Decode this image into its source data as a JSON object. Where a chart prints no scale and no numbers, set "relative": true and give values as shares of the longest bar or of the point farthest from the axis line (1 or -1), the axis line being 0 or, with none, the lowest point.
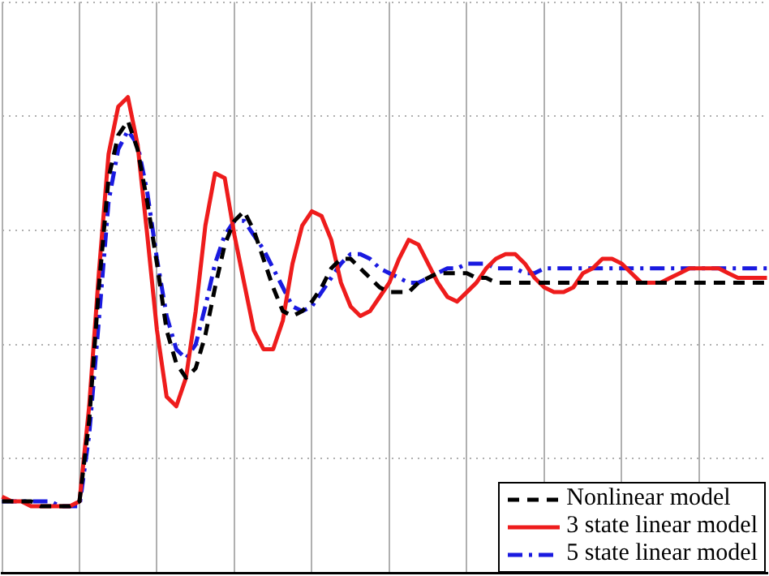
{
  "chart_data": {
    "type": "line",
    "relative": true,
    "grid": true,
    "legend": "bottom right",
    "marker": "none",
    "categories": [
      null,
      null,
      null,
      null,
      null,
      null,
      null,
      null,
      null,
      null,
      null,
      null,
      null,
      null,
      null,
      null,
      null,
      null,
      null,
      null,
      null,
      null,
      null,
      null,
      null,
      null,
      null,
      null,
      null,
      null,
      null,
      null,
      null,
      null,
      null,
      null,
      null,
      null,
      null,
      null,
      null,
      null,
      null,
      null,
      null,
      null,
      null,
      null,
      null,
      null,
      null,
      null,
      null,
      null,
      null,
      null,
      null,
      null,
      null,
      null,
      null,
      null,
      null,
      null,
      null,
      null,
      null,
      null,
      null,
      null,
      null,
      null,
      null,
      null,
      null,
      null,
      null,
      null,
      null,
      null
    ],
    "series": [
      {
        "name": "Nonlinear model",
        "color": "#000000",
        "line_style": "dashed",
        "values": [
          0.15,
          0.15,
          0.15,
          0.15,
          0.14,
          0.14,
          0.14,
          0.14,
          0.15,
          0.32,
          0.6,
          0.83,
          0.92,
          0.95,
          0.89,
          0.78,
          0.65,
          0.51,
          0.44,
          0.41,
          0.43,
          0.5,
          0.6,
          0.69,
          0.74,
          0.76,
          0.72,
          0.66,
          0.6,
          0.55,
          0.54,
          0.55,
          0.57,
          0.6,
          0.64,
          0.66,
          0.66,
          0.64,
          0.62,
          0.6,
          0.59,
          0.59,
          0.59,
          0.61,
          0.62,
          0.63,
          0.63,
          0.63,
          0.63,
          0.62,
          0.62,
          0.61,
          0.61,
          0.61,
          0.61,
          0.61,
          0.61,
          0.61,
          0.61,
          0.61,
          0.61,
          0.61,
          0.61,
          0.61,
          0.61,
          0.61,
          0.61,
          0.61,
          0.61,
          0.61,
          0.61,
          0.61,
          0.61,
          0.61,
          0.61,
          0.61,
          0.61,
          0.61,
          0.61,
          0.61
        ]
      },
      {
        "name": "3 state linear model",
        "color": "#ee1c1c",
        "line_style": "solid",
        "values": [
          0.16,
          0.15,
          0.15,
          0.14,
          0.14,
          0.14,
          0.14,
          0.14,
          0.15,
          0.35,
          0.63,
          0.88,
          0.98,
          1,
          0.9,
          0.71,
          0.51,
          0.37,
          0.35,
          0.41,
          0.55,
          0.73,
          0.84,
          0.83,
          0.71,
          0.61,
          0.51,
          0.47,
          0.47,
          0.53,
          0.65,
          0.73,
          0.76,
          0.75,
          0.7,
          0.61,
          0.56,
          0.54,
          0.55,
          0.58,
          0.61,
          0.66,
          0.7,
          0.69,
          0.65,
          0.61,
          0.58,
          0.57,
          0.59,
          0.61,
          0.64,
          0.66,
          0.67,
          0.67,
          0.65,
          0.62,
          0.6,
          0.59,
          0.59,
          0.6,
          0.63,
          0.64,
          0.66,
          0.66,
          0.65,
          0.63,
          0.61,
          0.61,
          0.61,
          0.62,
          0.63,
          0.64,
          0.64,
          0.64,
          0.64,
          0.63,
          0.62,
          0.62,
          0.62,
          0.62
        ]
      },
      {
        "name": "5 state linear model",
        "color": "#1a1ae0",
        "line_style": "dashdot",
        "values": [
          0.15,
          0.15,
          0.15,
          0.15,
          0.15,
          0.15,
          0.14,
          0.14,
          0.14,
          0.29,
          0.53,
          0.78,
          0.89,
          0.93,
          0.9,
          0.8,
          0.66,
          0.54,
          0.47,
          0.45,
          0.48,
          0.56,
          0.65,
          0.71,
          0.74,
          0.74,
          0.71,
          0.68,
          0.64,
          0.6,
          0.56,
          0.55,
          0.56,
          0.59,
          0.62,
          0.65,
          0.67,
          0.67,
          0.66,
          0.64,
          0.63,
          0.62,
          0.61,
          0.61,
          0.62,
          0.63,
          0.64,
          0.64,
          0.65,
          0.65,
          0.65,
          0.64,
          0.64,
          0.64,
          0.63,
          0.63,
          0.64,
          0.64,
          0.64,
          0.64,
          0.64,
          0.64,
          0.64,
          0.64,
          0.64,
          0.64,
          0.64,
          0.64,
          0.64,
          0.64,
          0.64,
          0.64,
          0.64,
          0.64,
          0.64,
          0.64,
          0.64,
          0.64,
          0.64,
          0.64
        ]
      }
    ]
  }
}
